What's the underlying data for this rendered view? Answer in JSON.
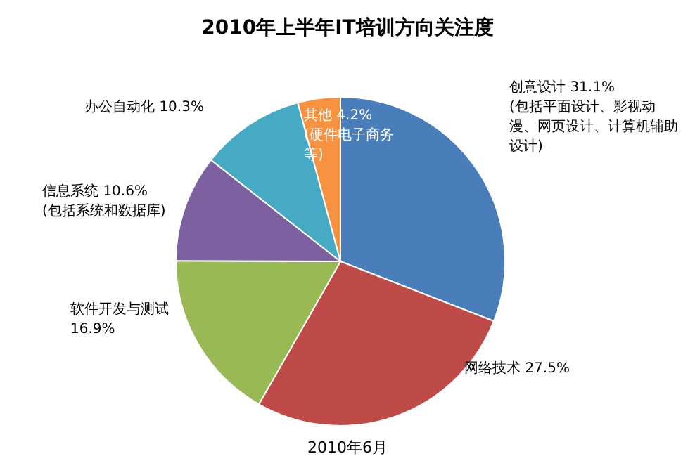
{
  "chart_data": {
    "type": "pie",
    "title": "2010年上半年IT培训方向关注度",
    "categories": [
      "创意设计",
      "网络技术",
      "软件开发与测试",
      "信息系统",
      "办公自动化",
      "其他"
    ],
    "values": [
      31.1,
      27.5,
      16.9,
      10.6,
      10.3,
      4.2
    ],
    "value_labels": [
      "31.1%",
      "27.5%",
      "16.9%",
      "10.6%",
      "10.3%",
      "4.2%"
    ],
    "colors": [
      "#4a7ebb",
      "#be4b48",
      "#98b954",
      "#7d60a0",
      "#46aac5",
      "#f69240"
    ],
    "annotations": [
      "(包括平面设计、影视动漫、网页设计、计算机辅助设计)",
      "(硬件电子商务等)",
      "(包括系统和数据库)",
      "2010年6月"
    ]
  }
}
